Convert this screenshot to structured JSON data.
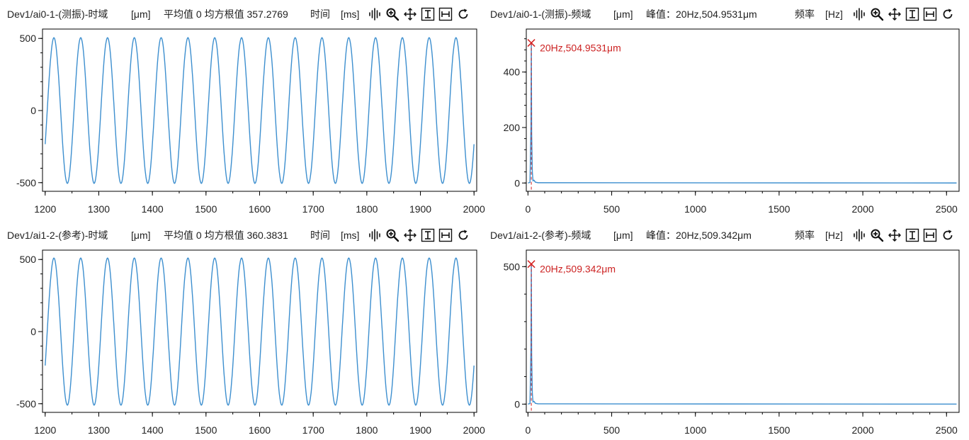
{
  "panels": [
    {
      "id": "p1",
      "kind": "time",
      "channel": "Dev1/ai0-1-(测振)-时域",
      "unit": "[μm]",
      "stat": "平均值 0 均方根值 357.2769",
      "axis_label": "时间",
      "axis_unit": "[ms]"
    },
    {
      "id": "p2",
      "kind": "freq",
      "channel": "Dev1/ai0-1-(测振)-频域",
      "unit": "[μm]",
      "stat": "峰值：20Hz,504.9531μm",
      "axis_label": "频率",
      "axis_unit": "[Hz]",
      "peak_label": "20Hz,504.9531μm"
    },
    {
      "id": "p3",
      "kind": "time",
      "channel": "Dev1/ai1-2-(参考)-时域",
      "unit": "[μm]",
      "stat": "平均值 0 均方根值 360.3831",
      "axis_label": "时间",
      "axis_unit": "[ms]"
    },
    {
      "id": "p4",
      "kind": "freq",
      "channel": "Dev1/ai1-2-(参考)-频域",
      "unit": "[μm]",
      "stat": "峰值：20Hz,509.342μm",
      "axis_label": "频率",
      "axis_unit": "[Hz]",
      "peak_label": "20Hz,509.342μm"
    }
  ],
  "toolbar_icons": [
    "waveform-icon",
    "zoom-in-icon",
    "pan-move-icon",
    "fit-vertical-icon",
    "fit-horizontal-icon",
    "reset-icon"
  ],
  "colors": {
    "trace": "#3d8fcf",
    "peak": "#d42020",
    "axis": "#000000"
  },
  "chart_data": [
    {
      "type": "line",
      "xlim": [
        1195,
        2005
      ],
      "ylim": [
        -560,
        565
      ],
      "x_ticks": [
        "1200",
        "1300",
        "1400",
        "1500",
        "1600",
        "1700",
        "1800",
        "1900",
        "2000"
      ],
      "y_ticks": [
        "500",
        "0",
        "-500"
      ],
      "series": [
        {
          "signal": "sine",
          "amplitude_um": 505,
          "frequency_hz": 20,
          "x_start_ms": 1200,
          "x_end_ms": 2000
        }
      ]
    },
    {
      "type": "line",
      "xlim": [
        -10,
        2575
      ],
      "ylim": [
        -30,
        555
      ],
      "x_ticks": [
        "0",
        "500",
        "1000",
        "1500",
        "2000",
        "2500"
      ],
      "y_ticks": [
        "400",
        "200",
        "0"
      ],
      "peak": {
        "x": 20,
        "y": 504.9531
      },
      "series": [
        {
          "signal": "spectrum",
          "peak_hz": 20,
          "peak_um": 504.9531
        }
      ]
    },
    {
      "type": "line",
      "xlim": [
        1195,
        2005
      ],
      "ylim": [
        -560,
        565
      ],
      "x_ticks": [
        "1200",
        "1300",
        "1400",
        "1500",
        "1600",
        "1700",
        "1800",
        "1900",
        "2000"
      ],
      "y_ticks": [
        "500",
        "0",
        "-500"
      ],
      "series": [
        {
          "signal": "sine",
          "amplitude_um": 510,
          "frequency_hz": 20,
          "x_start_ms": 1200,
          "x_end_ms": 2000
        }
      ]
    },
    {
      "type": "line",
      "xlim": [
        -10,
        2575
      ],
      "ylim": [
        -30,
        560
      ],
      "x_ticks": [
        "0",
        "500",
        "1000",
        "1500",
        "2000",
        "2500"
      ],
      "y_ticks": [
        "500",
        "0"
      ],
      "peak": {
        "x": 20,
        "y": 509.342
      },
      "series": [
        {
          "signal": "spectrum",
          "peak_hz": 20,
          "peak_um": 509.342
        }
      ]
    }
  ]
}
